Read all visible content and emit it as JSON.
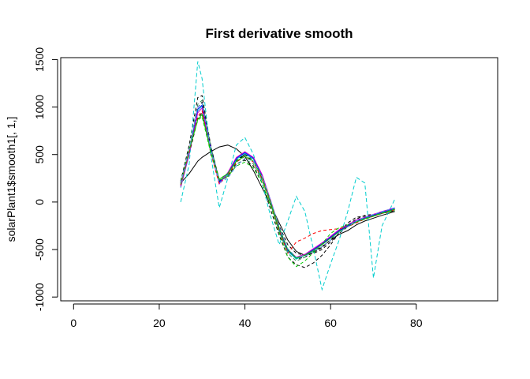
{
  "chart_data": {
    "type": "line",
    "title": "First derivative smooth",
    "xlabel": "",
    "ylabel": "solarPlant1$smooth1[, 1,]",
    "xlim": [
      -3,
      99
    ],
    "ylim": [
      -1040,
      1520
    ],
    "x_ticks": [
      0,
      20,
      40,
      60,
      80
    ],
    "y_ticks": [
      -1000,
      -500,
      0,
      500,
      1000,
      1500
    ],
    "x_tick_labels": [
      "0",
      "20",
      "40",
      "60",
      "80"
    ],
    "y_tick_labels": [
      "-1000",
      "-500",
      "0",
      "500",
      "1000",
      "1500"
    ],
    "x": [
      25,
      27,
      29,
      30,
      32,
      34,
      36,
      38,
      40,
      42,
      44,
      46,
      48,
      50,
      52,
      54,
      56,
      58,
      60,
      62,
      64,
      66,
      68,
      70,
      72,
      75
    ],
    "series": [
      {
        "color": "#000000",
        "dash": "solid",
        "values": [
          200,
          300,
          430,
          470,
          530,
          580,
          600,
          560,
          480,
          330,
          150,
          -30,
          -220,
          -400,
          -520,
          -560,
          -520,
          -470,
          -400,
          -340,
          -300,
          -240,
          -200,
          -170,
          -140,
          -100
        ]
      },
      {
        "color": "#000000",
        "dash": "4,3",
        "values": [
          220,
          600,
          1100,
          1120,
          600,
          220,
          270,
          420,
          500,
          450,
          260,
          0,
          -280,
          -500,
          -600,
          -580,
          -530,
          -480,
          -400,
          -300,
          -240,
          -180,
          -140,
          -130,
          -110,
          -80
        ]
      },
      {
        "color": "#000000",
        "dash": "4,3",
        "values": [
          180,
          500,
          880,
          940,
          560,
          230,
          280,
          400,
          440,
          380,
          200,
          -80,
          -350,
          -580,
          -660,
          -690,
          -640,
          -560,
          -450,
          -320,
          -220,
          -160,
          -150,
          -140,
          -120,
          -90
        ]
      },
      {
        "color": "#000000",
        "dash": "4,3",
        "values": [
          200,
          550,
          1000,
          1050,
          580,
          240,
          300,
          440,
          500,
          430,
          250,
          0,
          -250,
          -450,
          -540,
          -560,
          -540,
          -500,
          -420,
          -330,
          -260,
          -200,
          -170,
          -150,
          -120,
          -90
        ]
      },
      {
        "color": "#00CDCD",
        "dash": "5,3",
        "values": [
          0,
          400,
          1480,
          1300,
          500,
          -60,
          250,
          600,
          680,
          500,
          200,
          -150,
          -450,
          -200,
          60,
          -100,
          -500,
          -920,
          -650,
          -400,
          -100,
          260,
          200,
          -800,
          -250,
          30
        ]
      },
      {
        "color": "#00CDCD",
        "dash": "solid",
        "values": [
          150,
          500,
          960,
          1010,
          560,
          200,
          290,
          450,
          510,
          450,
          270,
          0,
          -290,
          -520,
          -600,
          -560,
          -500,
          -440,
          -370,
          -300,
          -250,
          -200,
          -170,
          -140,
          -110,
          -70
        ]
      },
      {
        "color": "#0000FF",
        "dash": "solid",
        "values": [
          170,
          520,
          980,
          1020,
          570,
          210,
          300,
          460,
          520,
          460,
          280,
          10,
          -280,
          -510,
          -590,
          -560,
          -500,
          -440,
          -370,
          -300,
          -250,
          -200,
          -165,
          -135,
          -105,
          -65
        ]
      },
      {
        "color": "#CD00CD",
        "dash": "solid",
        "values": [
          160,
          510,
          940,
          990,
          540,
          190,
          310,
          470,
          530,
          470,
          290,
          20,
          -270,
          -500,
          -580,
          -550,
          -490,
          -430,
          -360,
          -290,
          -240,
          -190,
          -160,
          -130,
          -100,
          -60
        ]
      },
      {
        "color": "#FF0000",
        "dash": "4,3",
        "values": [
          180,
          530,
          900,
          960,
          520,
          190,
          280,
          420,
          480,
          420,
          240,
          -10,
          -300,
          -540,
          -420,
          -380,
          -330,
          -300,
          -290,
          -280,
          -260,
          -220,
          -180,
          -150,
          -120,
          -80
        ]
      },
      {
        "color": "#00CD00",
        "dash": "4,3",
        "values": [
          200,
          560,
          860,
          900,
          520,
          230,
          270,
          380,
          420,
          360,
          200,
          -40,
          -320,
          -580,
          -680,
          -620,
          -530,
          -440,
          -330,
          -270,
          -240,
          -210,
          -180,
          -150,
          -120,
          -90
        ]
      },
      {
        "color": "#00CD00",
        "dash": "solid",
        "values": [
          190,
          550,
          870,
          920,
          540,
          240,
          300,
          430,
          480,
          430,
          260,
          0,
          -270,
          -500,
          -590,
          -560,
          -510,
          -450,
          -380,
          -310,
          -260,
          -210,
          -175,
          -145,
          -115,
          -75
        ]
      },
      {
        "color": "#2E8B57",
        "dash": "4,3",
        "values": [
          210,
          570,
          1030,
          1070,
          590,
          230,
          260,
          400,
          450,
          400,
          230,
          -20,
          -310,
          -540,
          -620,
          -580,
          -510,
          -450,
          -380,
          -310,
          -260,
          -210,
          -175,
          -145,
          -115,
          -75
        ]
      },
      {
        "color": "#6495ED",
        "dash": "4,3",
        "values": [
          200,
          560,
          1000,
          1040,
          560,
          200,
          250,
          380,
          460,
          430,
          270,
          20,
          -260,
          -490,
          -580,
          -570,
          -520,
          -470,
          -400,
          -320,
          -260,
          -200,
          -160,
          -130,
          -100,
          -60
        ]
      }
    ]
  }
}
